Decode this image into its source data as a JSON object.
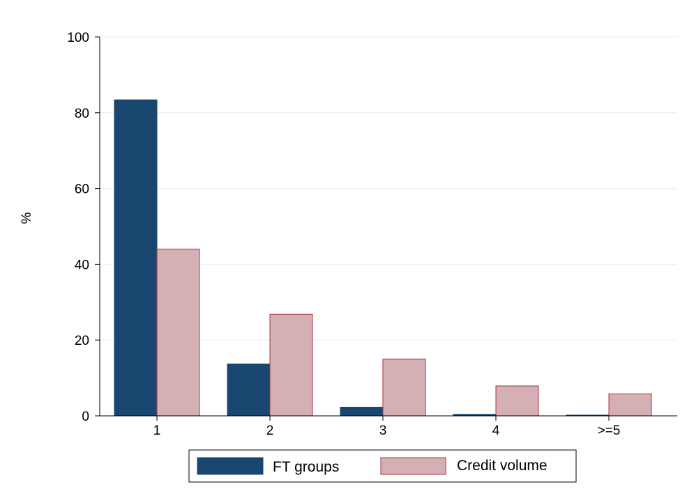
{
  "chart_data": {
    "type": "bar",
    "title": "",
    "xlabel": "",
    "ylabel": "%",
    "categories": [
      "1",
      "2",
      "3",
      "4",
      ">=5"
    ],
    "series": [
      {
        "name": "FT groups",
        "values": [
          83.4,
          13.7,
          2.3,
          0.4,
          0.2
        ]
      },
      {
        "name": "Credit volume",
        "values": [
          44.0,
          26.8,
          15.0,
          7.9,
          5.8
        ]
      }
    ],
    "ylim": [
      0,
      100
    ],
    "yticks": [
      "0",
      "20",
      "40",
      "60",
      "80",
      "100"
    ],
    "grid": true,
    "legend_position": "bottom",
    "colors": {
      "FT groups": "#1a476f",
      "Credit volume": "#d4b0b4",
      "Credit volume outline": "#a8323e",
      "grid": "#e8eef2"
    }
  }
}
